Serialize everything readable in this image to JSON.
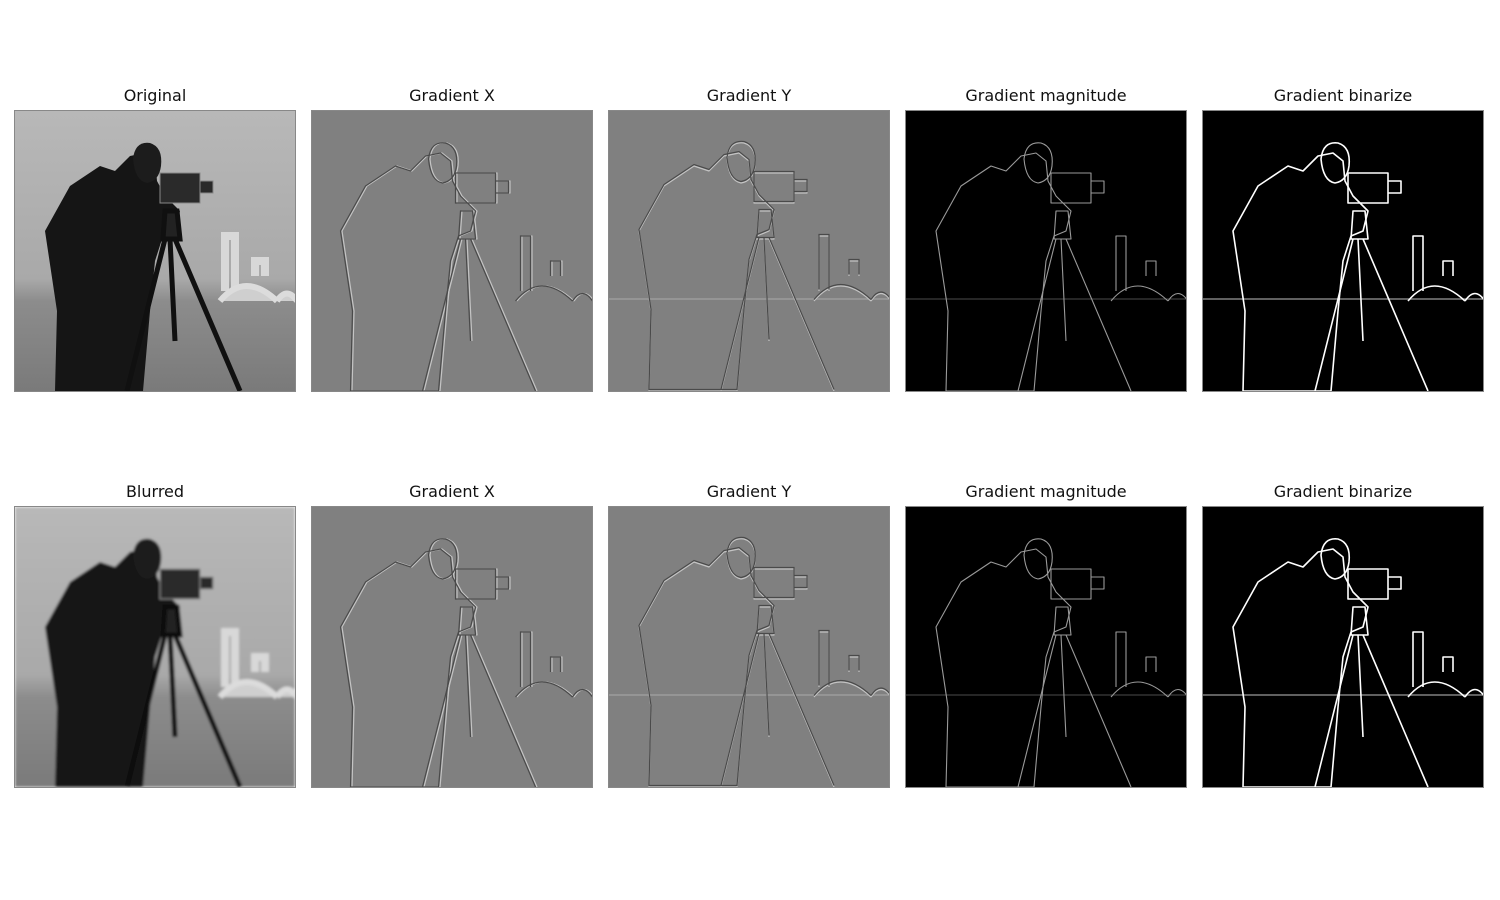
{
  "figure": {
    "rows": [
      {
        "panels": [
          {
            "title": "Original",
            "kind": "original"
          },
          {
            "title": "Gradient X",
            "kind": "grad-x"
          },
          {
            "title": "Gradient Y",
            "kind": "grad-y"
          },
          {
            "title": "Gradient magnitude",
            "kind": "grad-mag"
          },
          {
            "title": "Gradient binarize",
            "kind": "grad-bin"
          }
        ]
      },
      {
        "panels": [
          {
            "title": "Blurred",
            "kind": "blurred"
          },
          {
            "title": "Gradient X",
            "kind": "grad-x"
          },
          {
            "title": "Gradient Y",
            "kind": "grad-y"
          },
          {
            "title": "Gradient magnitude",
            "kind": "grad-mag"
          },
          {
            "title": "Gradient binarize",
            "kind": "grad-bin"
          }
        ]
      }
    ]
  },
  "colors": {
    "background": "#ffffff",
    "gradient_gray": "#808080",
    "magnitude_black": "#000000",
    "edge_white": "#ffffff"
  }
}
